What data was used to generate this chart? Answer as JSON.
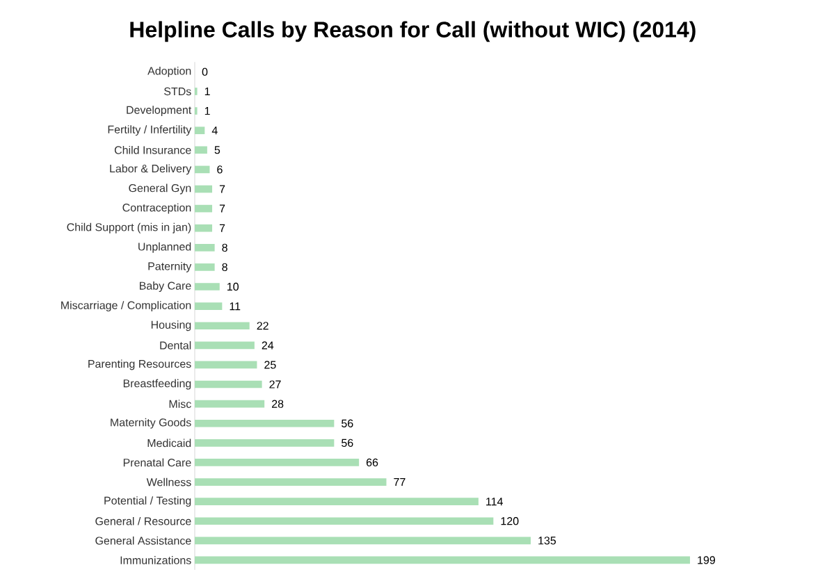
{
  "chart_data": {
    "type": "bar",
    "orientation": "horizontal",
    "title": "Helpline Calls by Reason for Call (without WIC) (2014)",
    "categories": [
      "Adoption",
      "STDs",
      "Development",
      "Fertilty / Infertility",
      "Child Insurance",
      "Labor & Delivery",
      "General Gyn",
      "Contraception",
      "Child Support (mis in jan)",
      "Unplanned",
      "Paternity",
      "Baby Care",
      "Miscarriage / Complication",
      "Housing",
      "Dental",
      "Parenting Resources",
      "Breastfeeding",
      "Misc",
      "Maternity Goods",
      "Medicaid",
      "Prenatal Care",
      "Wellness",
      "Potential / Testing",
      "General / Resource",
      "General Assistance",
      "Immunizations"
    ],
    "values": [
      0,
      1,
      1,
      4,
      5,
      6,
      7,
      7,
      7,
      8,
      8,
      10,
      11,
      22,
      24,
      25,
      27,
      28,
      56,
      56,
      66,
      77,
      114,
      120,
      135,
      199
    ],
    "color": "#a9dfb5",
    "data_labels": true,
    "tick_labels": "y"
  }
}
